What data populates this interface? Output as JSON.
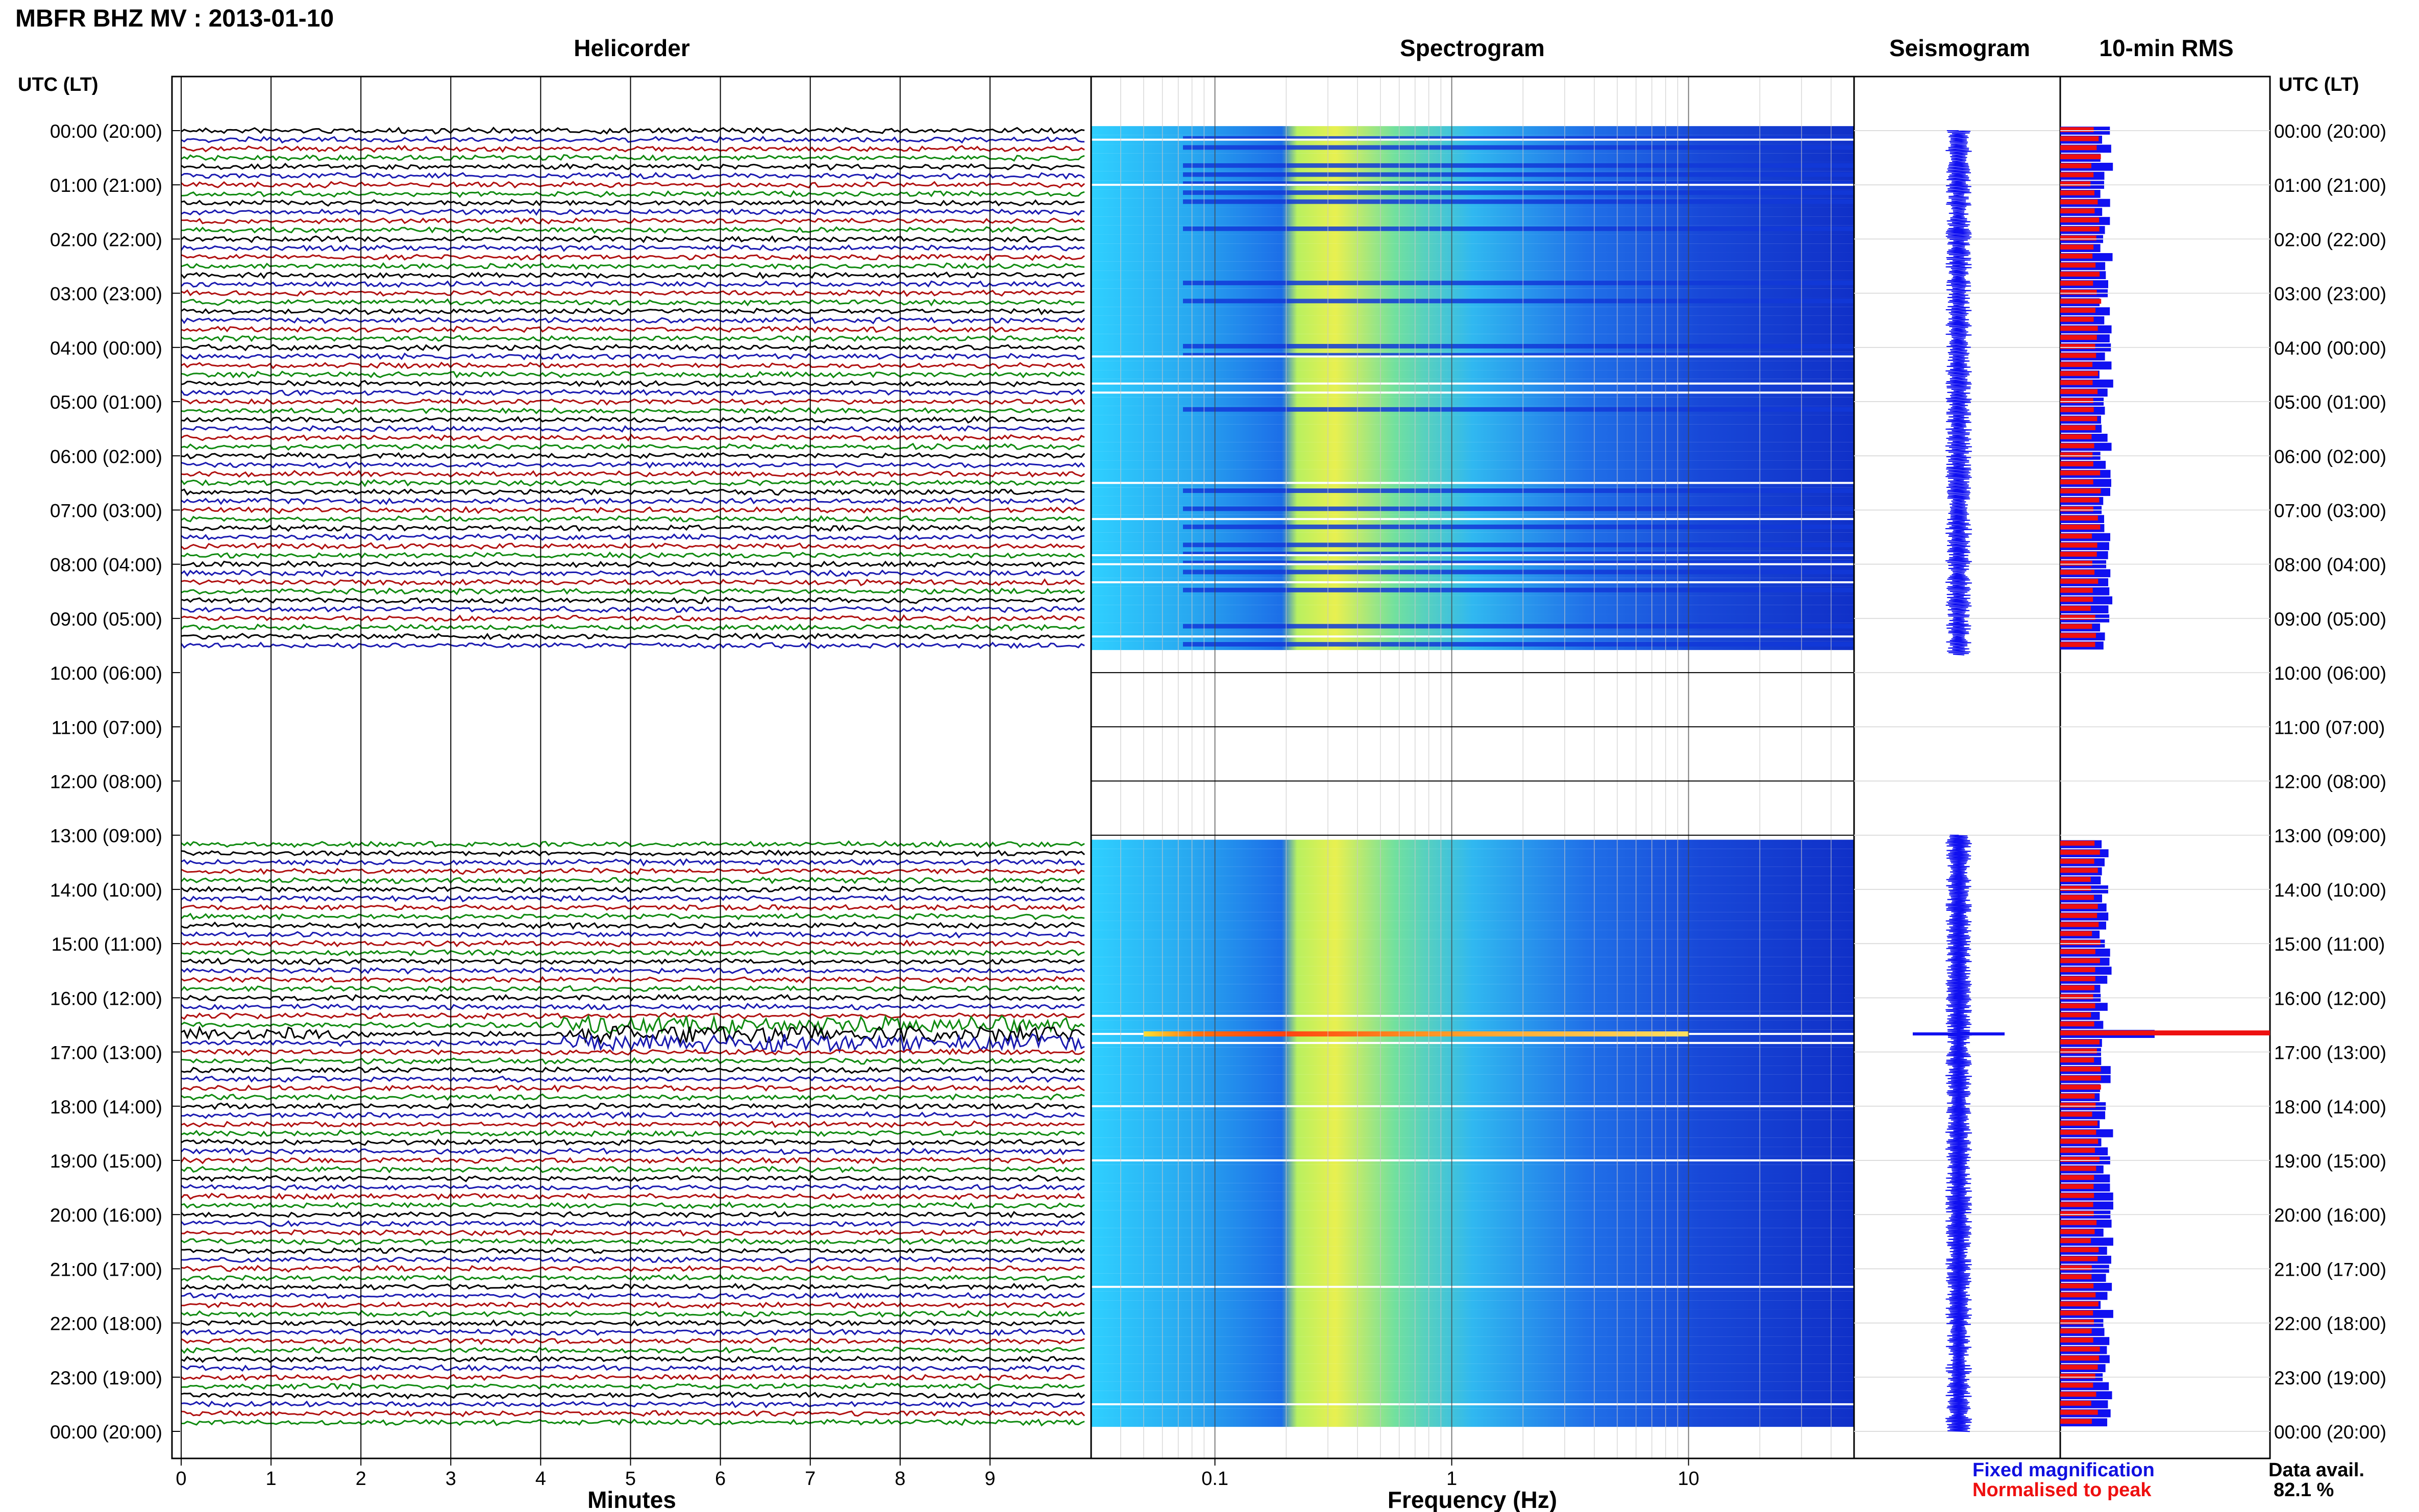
{
  "title": "MBFR BHZ MV : 2013-01-10",
  "panels": {
    "helicorder": "Helicorder",
    "spectrogram": "Spectrogram",
    "seismogram": "Seismogram",
    "rms": "10-min RMS"
  },
  "axis": {
    "utc_label_left": "UTC (LT)",
    "utc_label_right": "UTC (LT)",
    "time_ticks": [
      "00:00 (20:00)",
      "01:00 (21:00)",
      "02:00 (22:00)",
      "03:00 (23:00)",
      "04:00 (00:00)",
      "05:00 (01:00)",
      "06:00 (02:00)",
      "07:00 (03:00)",
      "08:00 (04:00)",
      "09:00 (05:00)",
      "10:00 (06:00)",
      "11:00 (07:00)",
      "12:00 (08:00)",
      "13:00 (09:00)",
      "14:00 (10:00)",
      "15:00 (11:00)",
      "16:00 (12:00)",
      "17:00 (13:00)",
      "18:00 (14:00)",
      "19:00 (15:00)",
      "20:00 (16:00)",
      "21:00 (17:00)",
      "22:00 (18:00)",
      "23:00 (19:00)",
      "00:00 (20:00)"
    ],
    "minutes_label": "Minutes",
    "minute_ticks": [
      "0",
      "1",
      "2",
      "3",
      "4",
      "5",
      "6",
      "7",
      "8",
      "9"
    ],
    "frequency_label": "Frequency (Hz)",
    "frequency_ticks": [
      "0.1",
      "1",
      "10"
    ]
  },
  "legend": {
    "fixed": "Fixed magnification",
    "normalised": "Normalised to peak",
    "fixed_color": "#1010e0",
    "normalised_color": "#ee1010"
  },
  "availability": {
    "label": "Data avail.",
    "value": "82.1 %"
  },
  "colors": {
    "trace_cycle": [
      "#000000",
      "#1a1ab0",
      "#b01010",
      "#108a10"
    ],
    "spectrogram_low": "#1020d0",
    "spectrogram_high": "#f0f040",
    "rms_fixed": "#1010f0",
    "rms_normalised": "#ee1010"
  },
  "chart_data": {
    "type": "helicorder",
    "date": "2013-01-10",
    "station": "MBFR BHZ MV",
    "rows_per_hour": 6,
    "row_minutes": 10,
    "data_gaps_utc": [
      [
        "09:40",
        "13:20"
      ]
    ],
    "data_availability_pct": 82.1,
    "event_utc": "16:40",
    "event_frequency_hz": [
      0.05,
      10
    ],
    "spectrogram_frequency_range_hz": [
      0.03,
      50
    ],
    "rms_10min": {
      "rows": 144,
      "gap_rows": [
        58,
        79
      ],
      "normalised_peak_row": 100,
      "peak_row_fixed_fraction": 0.45,
      "background_normalised_fraction": 0.17,
      "background_fixed_fraction": 0.22
    }
  }
}
